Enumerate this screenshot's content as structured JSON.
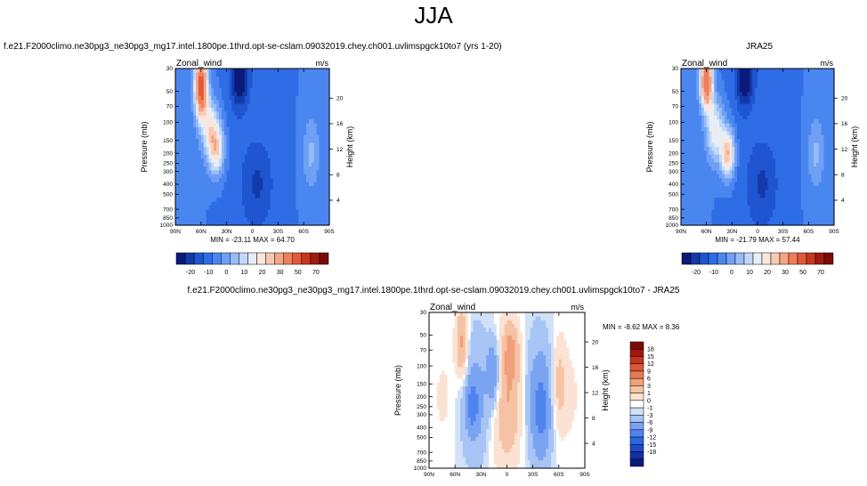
{
  "main_title": "JJA",
  "palettes": {
    "full": [
      "#0a1a7a",
      "#1439a8",
      "#1f55d0",
      "#2f6de6",
      "#4a86f0",
      "#6ea0f4",
      "#97bcf6",
      "#c3d8f8",
      "#e6eef8",
      "#fbe6dc",
      "#f8c9b2",
      "#f4a585",
      "#ee7f5a",
      "#e2583a",
      "#c9361f",
      "#a01a0e",
      "#7a0b05"
    ],
    "diff": [
      "#0a1a7a",
      "#1630a0",
      "#1f4ac8",
      "#2e65e0",
      "#4f84ee",
      "#7aa4f2",
      "#a7c4f5",
      "#d0e1f8",
      "#ffffff",
      "#fbe2d3",
      "#f6c2a4",
      "#f09f78",
      "#e87a52",
      "#dc5634",
      "#c4341c",
      "#9e180c",
      "#7a0b05"
    ]
  },
  "chart_data": [
    {
      "type": "heatmap",
      "title": "f.e21.F2000climo.ne30pg3_ne30pg3_mg17.intel.1800pe.1thrd.opt-se-cslam.09032019.chey.ch001.uvlimspgck10to7 (yrs 1-20)",
      "variable": "Zonal_wind",
      "units": "m/s",
      "ylabel": "Pressure (mb)",
      "y2label": "Height (km)",
      "x_ticks": [
        "90N",
        "60N",
        "30N",
        "0",
        "30S",
        "60S",
        "90S"
      ],
      "y_ticks": [
        "30",
        "50",
        "70",
        "100",
        "150",
        "200",
        "250",
        "300",
        "400",
        "500",
        "700",
        "850",
        "1000"
      ],
      "y2_ticks": [
        "4",
        "8",
        "12",
        "16",
        "20"
      ],
      "stats": "MIN = -23.11   MAX =  64.70",
      "colorbar_labels": [
        "-20",
        "-10",
        "0",
        "10",
        "20",
        "30",
        "50",
        "70"
      ],
      "features": [
        {
          "kind": "jet",
          "lat": 42,
          "p": 180,
          "value": 25
        },
        {
          "kind": "jet",
          "lat": 60,
          "p": 45,
          "value": 60
        },
        {
          "kind": "easterly",
          "lat": 15,
          "p": 35,
          "value": -22
        },
        {
          "kind": "easterly",
          "lat": -5,
          "p": 400,
          "value": -8
        },
        {
          "kind": "weak",
          "lat": -68,
          "p": 200,
          "value": 8
        }
      ]
    },
    {
      "type": "heatmap",
      "title": "JRA25",
      "variable": "Zonal_wind",
      "units": "m/s",
      "ylabel": "Pressure (mb)",
      "y2label": "Height (km)",
      "x_ticks": [
        "90N",
        "60N",
        "30N",
        "0",
        "30S",
        "60S",
        "90S"
      ],
      "y_ticks": [
        "30",
        "50",
        "70",
        "100",
        "150",
        "200",
        "250",
        "300",
        "400",
        "500",
        "700",
        "850",
        "1000"
      ],
      "y2_ticks": [
        "4",
        "8",
        "12",
        "16",
        "20"
      ],
      "stats": "MIN = -21.79   MAX =  57.44",
      "colorbar_labels": [
        "-20",
        "-10",
        "0",
        "10",
        "20",
        "30",
        "50",
        "70"
      ],
      "features": [
        {
          "kind": "jet",
          "lat": 35,
          "p": 200,
          "value": 32
        },
        {
          "kind": "jet",
          "lat": 60,
          "p": 40,
          "value": 55
        },
        {
          "kind": "easterly",
          "lat": 15,
          "p": 35,
          "value": -21
        },
        {
          "kind": "easterly",
          "lat": -5,
          "p": 400,
          "value": -8
        },
        {
          "kind": "weak",
          "lat": -68,
          "p": 200,
          "value": 8
        }
      ]
    },
    {
      "type": "heatmap",
      "title": "f.e21.F2000climo.ne30pg3_ne30pg3_mg17.intel.1800pe.1thrd.opt-se-cslam.09032019.chey.ch001.uvlimspgck10to7 - JRA25",
      "variable": "Zonal_wind",
      "units": "m/s",
      "ylabel": "Pressure (mb)",
      "y2label": "Height (km)",
      "x_ticks": [
        "90N",
        "60N",
        "30N",
        "0",
        "30S",
        "60S",
        "90S"
      ],
      "y_ticks": [
        "30",
        "50",
        "70",
        "100",
        "150",
        "200",
        "250",
        "300",
        "400",
        "500",
        "700",
        "850",
        "1000"
      ],
      "y2_ticks": [
        "4",
        "8",
        "12",
        "16",
        "20"
      ],
      "stats": "MIN = -8.62   MAX =  8.36",
      "colorbar_labels": [
        "18",
        "15",
        "12",
        "9",
        "6",
        "3",
        "1",
        "0",
        "-1",
        "-3",
        "-6",
        "-9",
        "-12",
        "-15",
        "-18"
      ]
    }
  ]
}
